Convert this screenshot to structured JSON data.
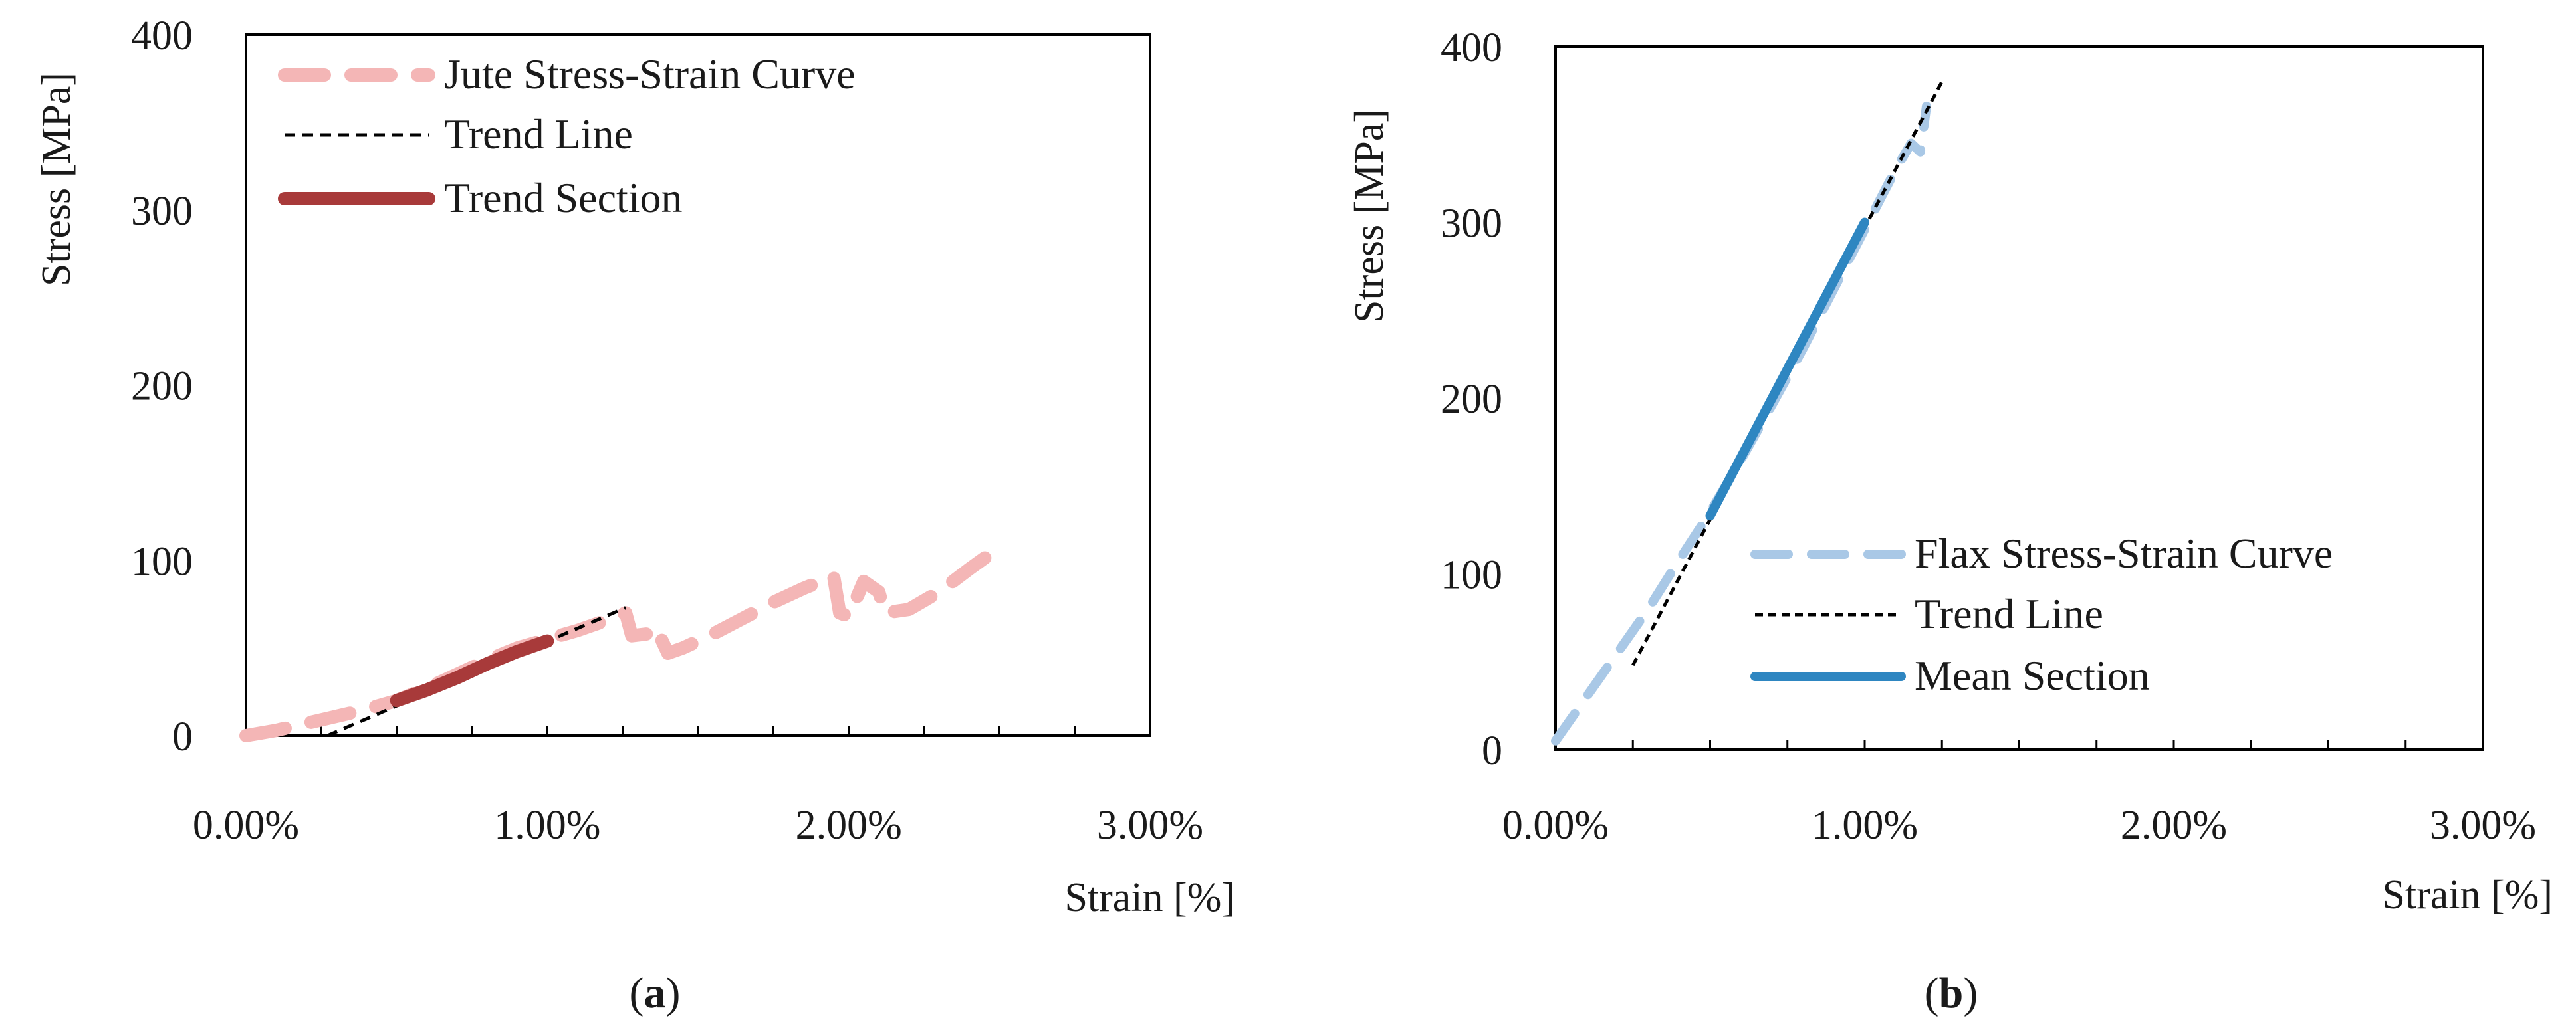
{
  "colors": {
    "axis": "#000000",
    "jute_curve": "#F4B6B6",
    "trend_line": "#000000",
    "trend_section": "#A83A3A",
    "flax_curve": "#A9C8E6",
    "mean_section": "#2E86C1"
  },
  "chart_data": [
    {
      "type": "line",
      "panel": "a",
      "caption_letter": "a",
      "xlabel": "Strain [%]",
      "ylabel": "Stress [MPa]",
      "xlim": [
        0,
        3
      ],
      "ylim": [
        0,
        400
      ],
      "xticks": [
        0,
        1,
        2,
        3
      ],
      "xtick_labels": [
        "0.00%",
        "1.00%",
        "2.00%",
        "3.00%"
      ],
      "yticks": [
        0,
        100,
        200,
        300,
        400
      ],
      "ytick_labels": [
        "0",
        "100",
        "200",
        "300",
        "400"
      ],
      "legend_position": "top-left",
      "series": [
        {
          "name": "Jute Stress-Strain Curve",
          "style": "dashed-thick",
          "x": [
            0.0,
            0.1,
            0.2,
            0.3,
            0.4,
            0.5,
            0.6,
            0.7,
            0.8,
            0.9,
            1.0,
            1.1,
            1.2,
            1.26,
            1.28,
            1.33,
            1.36,
            1.4,
            1.45,
            1.55,
            1.65,
            1.75,
            1.85,
            1.95,
            1.97,
            2.0,
            2.05,
            2.1,
            2.12,
            2.2,
            2.3,
            2.4,
            2.48
          ],
          "y": [
            0,
            3,
            7,
            11,
            15,
            20,
            27,
            35,
            43,
            50,
            55,
            60,
            66,
            70,
            57,
            58,
            62,
            47,
            50,
            58,
            67,
            76,
            84,
            91,
            70,
            68,
            88,
            82,
            70,
            72,
            82,
            95,
            105
          ]
        },
        {
          "name": "Trend Line",
          "style": "dashed-thin",
          "x": [
            0.27,
            1.26
          ],
          "y": [
            0,
            73
          ]
        },
        {
          "name": "Trend Section",
          "style": "solid-thick",
          "x": [
            0.5,
            0.6,
            0.7,
            0.8,
            0.9,
            1.0
          ],
          "y": [
            20,
            26,
            33,
            41,
            48,
            54
          ]
        }
      ]
    },
    {
      "type": "line",
      "panel": "b",
      "caption_letter": "b",
      "xlabel": "Strain [%]",
      "ylabel": "Stress [MPa]",
      "xlim": [
        0,
        3
      ],
      "ylim": [
        0,
        400
      ],
      "xticks": [
        0,
        1,
        2,
        3
      ],
      "xtick_labels": [
        "0.00%",
        "1.00%",
        "2.00%",
        "3.00%"
      ],
      "yticks": [
        0,
        100,
        200,
        300,
        400
      ],
      "ytick_labels": [
        "0",
        "100",
        "200",
        "300",
        "400"
      ],
      "legend_position": "bottom-right",
      "series": [
        {
          "name": "Flax Stress-Strain Curve",
          "style": "dashed-thick",
          "x": [
            0.0,
            0.1,
            0.2,
            0.3,
            0.4,
            0.5,
            0.6,
            0.7,
            0.8,
            0.9,
            1.0,
            1.1,
            1.15,
            1.18,
            1.2
          ],
          "y": [
            5,
            30,
            55,
            80,
            108,
            135,
            165,
            196,
            228,
            262,
            296,
            330,
            345,
            340,
            366
          ]
        },
        {
          "name": "Trend Line",
          "style": "dashed-thin",
          "x": [
            0.25,
            1.25
          ],
          "y": [
            48,
            380
          ]
        },
        {
          "name": "Mean Section",
          "style": "solid-thick",
          "x": [
            0.5,
            1.0
          ],
          "y": [
            133,
            300
          ]
        }
      ]
    }
  ]
}
